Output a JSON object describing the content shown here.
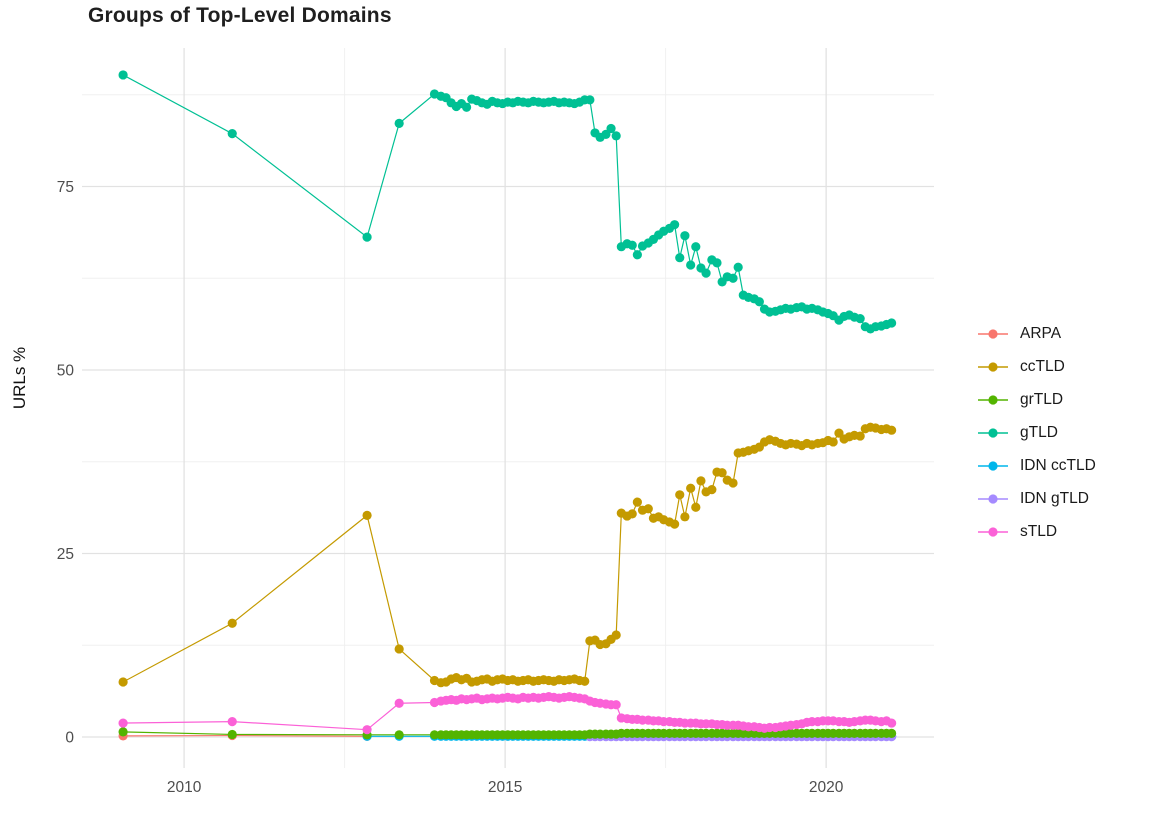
{
  "page": {
    "title": "Groups of Top-Level Domains"
  },
  "chart_data": {
    "type": "line",
    "title": "Groups of Top-Level Domains",
    "xlabel": "",
    "ylabel": "URLs %",
    "grid": true,
    "legend_position": "right",
    "xlim": [
      2008.41,
      2021.68
    ],
    "ylim": [
      -4.22,
      93.87
    ],
    "x_ticks": {
      "labels": [
        "2010",
        "2015",
        "2020"
      ],
      "values": [
        2010,
        2015,
        2020
      ]
    },
    "x_minor": [
      2012.5,
      2017.5
    ],
    "y_ticks": {
      "labels": [
        "0",
        "25",
        "50",
        "75"
      ],
      "values": [
        0,
        25,
        50,
        75
      ]
    },
    "y_minor": [
      12.5,
      37.5,
      62.5,
      87.5
    ],
    "colors": {
      "ARPA": "#F8766D",
      "ccTLD": "#C49A00",
      "grTLD": "#53B400",
      "gTLD": "#00C094",
      "IDN ccTLD": "#00B6EB",
      "IDN gTLD": "#A58AFF",
      "sTLD": "#FB61D7",
      "grid_major": "#E2E2E2",
      "grid_minor": "#F0F0F0",
      "tick_text": "#4d4d4d"
    },
    "legend": [
      {
        "label": "ARPA",
        "color": "#F8766D"
      },
      {
        "label": "ccTLD",
        "color": "#C49A00"
      },
      {
        "label": "grTLD",
        "color": "#53B400"
      },
      {
        "label": "gTLD",
        "color": "#00C094"
      },
      {
        "label": "IDN ccTLD",
        "color": "#00B6EB"
      },
      {
        "label": "IDN gTLD",
        "color": "#A58AFF"
      },
      {
        "label": "sTLD",
        "color": "#FB61D7"
      }
    ],
    "x_main": [
      2009.05,
      2010.75,
      2012.85,
      2013.35,
      2013.9,
      2014.0,
      2014.08,
      2014.16,
      2014.24,
      2014.32,
      2014.4,
      2014.48,
      2014.56,
      2014.64,
      2014.72,
      2014.8,
      2014.88,
      2014.96,
      2015.04,
      2015.12,
      2015.2,
      2015.28,
      2015.36,
      2015.44,
      2015.52,
      2015.6,
      2015.68,
      2015.76,
      2015.84,
      2015.92,
      2016.0,
      2016.08,
      2016.16,
      2016.24,
      2016.32,
      2016.4,
      2016.48,
      2016.57,
      2016.65,
      2016.73,
      2016.81,
      2016.9,
      2016.98,
      2017.06,
      2017.14,
      2017.23,
      2017.31,
      2017.39,
      2017.47,
      2017.56,
      2017.64,
      2017.72,
      2017.8,
      2017.89,
      2017.97,
      2018.05,
      2018.13,
      2018.22,
      2018.3,
      2018.38,
      2018.46,
      2018.55,
      2018.63,
      2018.71,
      2018.79,
      2018.88,
      2018.96,
      2019.04,
      2019.12,
      2019.21,
      2019.29,
      2019.37,
      2019.45,
      2019.54,
      2019.62,
      2019.7,
      2019.78,
      2019.87,
      2019.95,
      2020.03,
      2020.11,
      2020.2,
      2020.28,
      2020.36,
      2020.44,
      2020.53,
      2020.61,
      2020.69,
      2020.77,
      2020.86,
      2020.94,
      2021.02
    ],
    "series": [
      {
        "name": "ARPA",
        "color": "#F8766D",
        "x": [
          2009.05,
          2010.75,
          2012.85
        ],
        "y": [
          0.15,
          0.2,
          0.1
        ]
      },
      {
        "name": "IDN ccTLD",
        "color": "#00B6EB",
        "x_start_index": 2,
        "y_const": 0.1
      },
      {
        "name": "IDN gTLD",
        "color": "#A58AFF",
        "x_start_index": 34,
        "y_const": 0.05
      },
      {
        "name": "grTLD",
        "color": "#53B400",
        "x_start_index": 0,
        "y": [
          0.7,
          0.35,
          0.3,
          0.3,
          0.3,
          0.3,
          0.3,
          0.3,
          0.3,
          0.3,
          0.3,
          0.3,
          0.3,
          0.3,
          0.3,
          0.3,
          0.3,
          0.3,
          0.3,
          0.3,
          0.3,
          0.3,
          0.3,
          0.3,
          0.3,
          0.3,
          0.3,
          0.3,
          0.3,
          0.3,
          0.3,
          0.3,
          0.3,
          0.3,
          0.4,
          0.4,
          0.4,
          0.4,
          0.4,
          0.4,
          0.5,
          0.5,
          0.5,
          0.5,
          0.5,
          0.5,
          0.5,
          0.5,
          0.5,
          0.5,
          0.5,
          0.5,
          0.5,
          0.5,
          0.5,
          0.5,
          0.5,
          0.5,
          0.5,
          0.5,
          0.5,
          0.5,
          0.5,
          0.5,
          0.5,
          0.5,
          0.5,
          0.5,
          0.5,
          0.5,
          0.5,
          0.5,
          0.5,
          0.5,
          0.5,
          0.5,
          0.5,
          0.5,
          0.5,
          0.5,
          0.5,
          0.5,
          0.5,
          0.5,
          0.5,
          0.5,
          0.5,
          0.5,
          0.5,
          0.5,
          0.5,
          0.5
        ]
      },
      {
        "name": "sTLD",
        "color": "#FB61D7",
        "x_start_index": 0,
        "y": [
          1.9,
          2.1,
          1.0,
          4.6,
          4.7,
          4.9,
          5.0,
          5.1,
          5.0,
          5.2,
          5.1,
          5.2,
          5.3,
          5.1,
          5.2,
          5.3,
          5.2,
          5.3,
          5.4,
          5.3,
          5.2,
          5.4,
          5.3,
          5.4,
          5.3,
          5.4,
          5.5,
          5.4,
          5.3,
          5.4,
          5.5,
          5.4,
          5.3,
          5.2,
          4.9,
          4.7,
          4.6,
          4.5,
          4.4,
          4.4,
          2.6,
          2.5,
          2.4,
          2.4,
          2.3,
          2.3,
          2.2,
          2.2,
          2.1,
          2.1,
          2.0,
          2.0,
          1.9,
          1.9,
          1.9,
          1.8,
          1.8,
          1.8,
          1.7,
          1.7,
          1.6,
          1.6,
          1.6,
          1.5,
          1.4,
          1.4,
          1.3,
          1.2,
          1.3,
          1.3,
          1.4,
          1.5,
          1.6,
          1.7,
          1.8,
          2.0,
          2.1,
          2.1,
          2.2,
          2.2,
          2.2,
          2.1,
          2.1,
          2.0,
          2.1,
          2.2,
          2.3,
          2.3,
          2.2,
          2.1,
          2.2,
          1.9
        ]
      },
      {
        "name": "ccTLD",
        "color": "#C49A00",
        "x_start_index": 0,
        "y": [
          7.5,
          15.5,
          30.2,
          12.0,
          7.7,
          7.4,
          7.5,
          7.9,
          8.1,
          7.8,
          8.0,
          7.5,
          7.6,
          7.8,
          7.9,
          7.6,
          7.8,
          7.9,
          7.7,
          7.8,
          7.6,
          7.7,
          7.8,
          7.6,
          7.7,
          7.8,
          7.7,
          7.6,
          7.8,
          7.7,
          7.8,
          7.9,
          7.7,
          7.6,
          13.1,
          13.2,
          12.6,
          12.7,
          13.3,
          13.9,
          30.5,
          30.1,
          30.4,
          32.0,
          30.9,
          31.1,
          29.8,
          30.0,
          29.6,
          29.3,
          29.0,
          33.0,
          30.0,
          33.9,
          31.3,
          34.9,
          33.4,
          33.7,
          36.1,
          36.0,
          35.0,
          34.6,
          38.7,
          38.8,
          39.0,
          39.2,
          39.5,
          40.2,
          40.5,
          40.3,
          40.0,
          39.8,
          40.0,
          39.9,
          39.7,
          40.0,
          39.8,
          40.0,
          40.1,
          40.4,
          40.2,
          41.4,
          40.6,
          40.9,
          41.1,
          41.0,
          42.0,
          42.2,
          42.1,
          41.9,
          42.0,
          41.8
        ]
      },
      {
        "name": "gTLD",
        "color": "#00C094",
        "x_start_index": 0,
        "y": [
          90.2,
          82.2,
          68.1,
          83.6,
          87.6,
          87.3,
          87.1,
          86.4,
          85.9,
          86.3,
          85.8,
          86.9,
          86.7,
          86.4,
          86.2,
          86.6,
          86.4,
          86.3,
          86.5,
          86.4,
          86.6,
          86.5,
          86.4,
          86.6,
          86.5,
          86.4,
          86.5,
          86.6,
          86.4,
          86.5,
          86.4,
          86.3,
          86.5,
          86.8,
          86.8,
          82.3,
          81.7,
          82.1,
          82.9,
          81.9,
          66.8,
          67.2,
          67.0,
          65.7,
          66.9,
          67.3,
          67.8,
          68.4,
          68.9,
          69.3,
          69.8,
          65.3,
          68.3,
          64.3,
          66.8,
          63.9,
          63.2,
          65.0,
          64.6,
          62.0,
          62.7,
          62.5,
          64.0,
          60.2,
          59.9,
          59.7,
          59.3,
          58.3,
          57.9,
          58.0,
          58.2,
          58.4,
          58.3,
          58.5,
          58.6,
          58.3,
          58.4,
          58.2,
          57.9,
          57.7,
          57.4,
          56.8,
          57.3,
          57.5,
          57.2,
          57.0,
          55.9,
          55.6,
          55.9,
          56.0,
          56.2,
          56.4
        ]
      }
    ]
  }
}
